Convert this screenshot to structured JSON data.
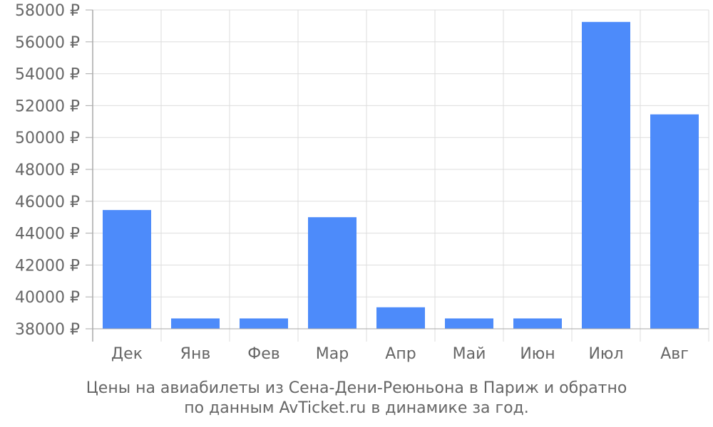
{
  "chart_data": {
    "type": "bar",
    "categories": [
      "Дек",
      "Янв",
      "Фев",
      "Мар",
      "Апр",
      "Май",
      "Июн",
      "Июл",
      "Авг"
    ],
    "values": [
      45450,
      38650,
      38650,
      45000,
      39350,
      38650,
      38650,
      57250,
      51450
    ],
    "ylim": [
      38000,
      58000
    ],
    "yticks": [
      "38000 ₽",
      "40000 ₽",
      "42000 ₽",
      "44000 ₽",
      "46000 ₽",
      "48000 ₽",
      "50000 ₽",
      "52000 ₽",
      "54000 ₽",
      "56000 ₽",
      "58000 ₽"
    ],
    "ytick_values": [
      38000,
      40000,
      42000,
      44000,
      46000,
      48000,
      50000,
      52000,
      54000,
      56000,
      58000
    ],
    "grid": true,
    "legend": "none",
    "bar_color": "#4d8bfa",
    "grid_color": "#dddddd",
    "axis_color": "#aaaaaa",
    "text_color": "#666666"
  },
  "caption": {
    "line1": "Цены на авиабилеты из Сена-Дени-Реюньона в Париж и обратно",
    "line2": "по данным AvTicket.ru в динамике за год."
  }
}
